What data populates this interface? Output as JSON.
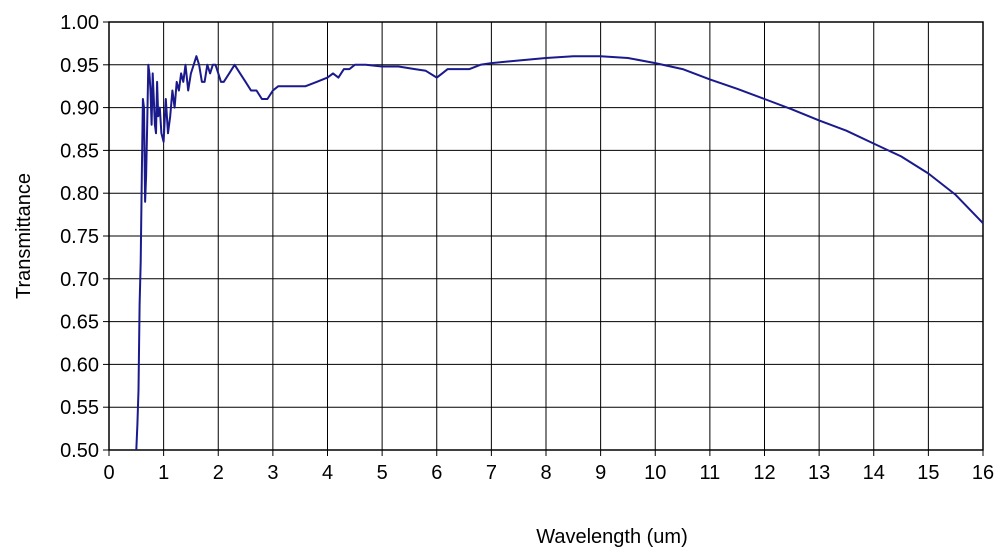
{
  "chart_data": {
    "type": "line",
    "title": "",
    "xlabel": "Wavelength (um)",
    "ylabel": "Transmittance",
    "xlim": [
      0,
      16
    ],
    "ylim": [
      0.5,
      1.0
    ],
    "x_ticks": [
      "0",
      "1",
      "2",
      "3",
      "4",
      "5",
      "6",
      "7",
      "8",
      "9",
      "10",
      "11",
      "12",
      "13",
      "14",
      "15",
      "16"
    ],
    "y_ticks": [
      "0.50",
      "0.55",
      "0.60",
      "0.65",
      "0.70",
      "0.75",
      "0.80",
      "0.85",
      "0.90",
      "0.95",
      "1.00"
    ],
    "grid": true,
    "legend": "none",
    "line_color": "#1a1a8c",
    "series": [
      {
        "x": [
          0.5,
          0.52,
          0.54,
          0.56,
          0.58,
          0.6,
          0.62,
          0.64,
          0.66,
          0.68,
          0.7,
          0.72,
          0.74,
          0.76,
          0.78,
          0.8,
          0.82,
          0.84,
          0.86,
          0.88,
          0.9,
          0.93,
          0.96,
          1.0,
          1.04,
          1.08,
          1.12,
          1.16,
          1.2,
          1.24,
          1.28,
          1.32,
          1.36,
          1.4,
          1.45,
          1.5,
          1.55,
          1.6,
          1.65,
          1.7,
          1.75,
          1.8,
          1.85,
          1.9,
          1.95,
          2.0,
          2.05,
          2.1,
          2.2,
          2.3,
          2.4,
          2.5,
          2.6,
          2.7,
          2.8,
          2.9,
          3.0,
          3.1,
          3.2,
          3.4,
          3.6,
          3.8,
          4.0,
          4.1,
          4.2,
          4.3,
          4.4,
          4.5,
          4.7,
          5.0,
          5.3,
          5.6,
          5.8,
          6.0,
          6.1,
          6.2,
          6.4,
          6.6,
          6.8,
          7.0,
          7.5,
          8.0,
          8.5,
          9.0,
          9.5,
          10.0,
          10.5,
          11.0,
          11.5,
          12.0,
          12.5,
          13.0,
          13.5,
          14.0,
          14.5,
          15.0,
          15.5,
          16.0
        ],
        "y": [
          0.5,
          0.53,
          0.57,
          0.67,
          0.72,
          0.82,
          0.91,
          0.9,
          0.79,
          0.82,
          0.88,
          0.95,
          0.94,
          0.92,
          0.88,
          0.94,
          0.91,
          0.88,
          0.87,
          0.93,
          0.89,
          0.9,
          0.87,
          0.86,
          0.91,
          0.87,
          0.89,
          0.92,
          0.9,
          0.93,
          0.92,
          0.94,
          0.93,
          0.95,
          0.92,
          0.94,
          0.95,
          0.96,
          0.95,
          0.93,
          0.93,
          0.95,
          0.94,
          0.95,
          0.95,
          0.94,
          0.93,
          0.93,
          0.94,
          0.95,
          0.94,
          0.93,
          0.92,
          0.92,
          0.91,
          0.91,
          0.92,
          0.925,
          0.925,
          0.925,
          0.925,
          0.93,
          0.935,
          0.94,
          0.935,
          0.945,
          0.945,
          0.95,
          0.95,
          0.948,
          0.948,
          0.945,
          0.943,
          0.935,
          0.94,
          0.945,
          0.945,
          0.945,
          0.95,
          0.952,
          0.955,
          0.958,
          0.96,
          0.96,
          0.958,
          0.952,
          0.945,
          0.933,
          0.922,
          0.91,
          0.898,
          0.885,
          0.873,
          0.858,
          0.843,
          0.823,
          0.798,
          0.765
        ]
      }
    ]
  }
}
